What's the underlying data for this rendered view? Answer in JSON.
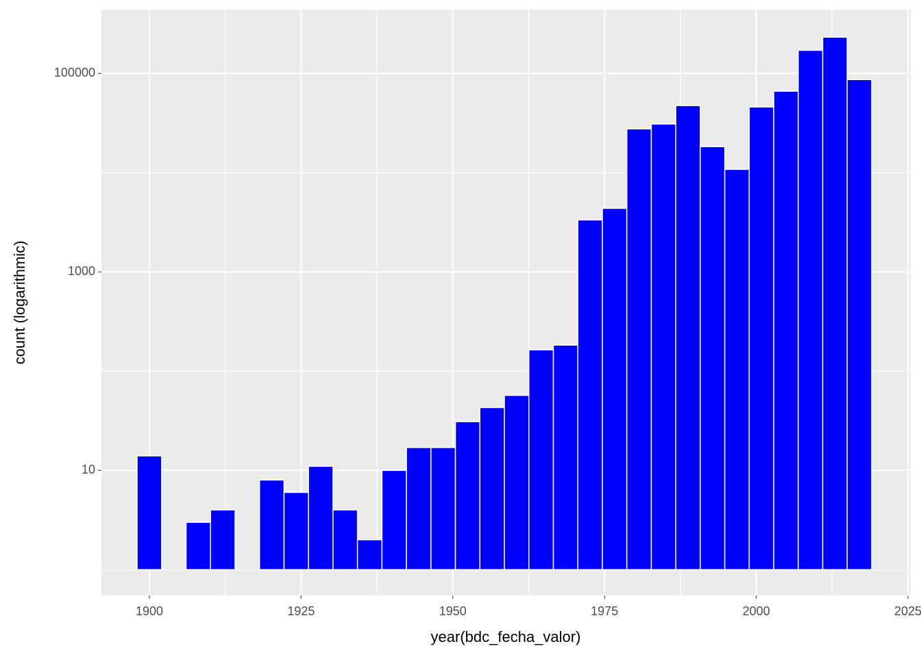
{
  "chart_data": {
    "type": "histogram",
    "x_label": "year(bdc_fecha_valor)",
    "y_label": "count (logarithmic)",
    "bins": [
      1897.98,
      1902.02,
      1906.05,
      1910.08,
      1914.12,
      1918.15,
      1922.19,
      1926.22,
      1930.26,
      1934.29,
      1938.33,
      1942.36,
      1946.39,
      1950.43,
      1954.46,
      1958.5,
      1962.53,
      1966.57,
      1970.6,
      1974.64,
      1978.67,
      1982.71,
      1986.74,
      1990.77,
      1994.81,
      1998.84,
      2002.88,
      2006.91,
      2010.95,
      2014.98,
      2019.02
    ],
    "values": [
      14,
      0,
      3,
      4,
      0,
      8,
      6,
      11,
      4,
      2,
      10,
      17,
      17,
      31,
      43,
      57,
      164,
      183,
      3340,
      4370,
      27600,
      30900,
      47400,
      18300,
      10800,
      45900,
      66200,
      171000,
      232000,
      86700
    ],
    "color": "#0000ff",
    "xlim": [
      1892.1,
      2025.45
    ],
    "xticks": [
      1900,
      1925,
      1950,
      1975,
      2000,
      2025
    ],
    "ylim": [
      0.55,
      440000
    ],
    "yticks": [
      10,
      1000,
      100000
    ],
    "minor_yticks": [
      1,
      100,
      10000
    ],
    "y_log": true,
    "grid": true
  }
}
